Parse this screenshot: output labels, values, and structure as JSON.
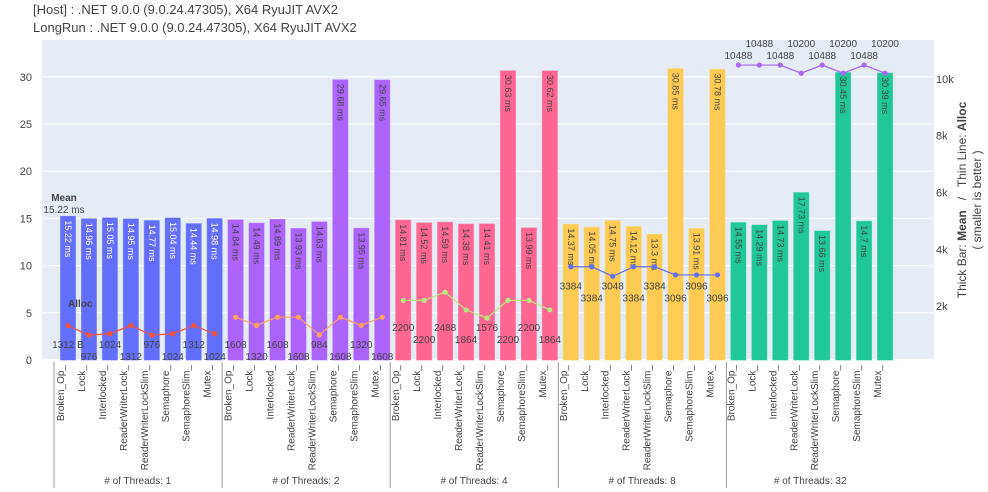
{
  "header": {
    "line1": "[Host]  : .NET 9.0.0 (9.0.24.47305), X64 RyuJIT AVX2",
    "line2": "LongRun : .NET 9.0.0 (9.0.24.47305), X64 RyuJIT AVX2"
  },
  "chart_data": {
    "type": "bar",
    "categories": [
      "Broken_Op_",
      "Lock_",
      "Interlocked_",
      "ReaderWriterLock_",
      "ReaderWriterLockSlim_",
      "Semaphore_",
      "SemaphoreSlim_",
      "Mutex_"
    ],
    "groups": [
      {
        "name": "# of Threads: 1",
        "color": "#636efa",
        "line_color": "#ef553b",
        "text_color": "#ffffff",
        "mean": [
          15.22,
          14.96,
          15.05,
          14.95,
          14.77,
          15.04,
          14.44,
          14.98
        ],
        "mean_labels": [
          "15.22 ms",
          "14.96 ms",
          "15.05 ms",
          "14.95 ms",
          "14.77 ms",
          "15.04 ms",
          "14.44 ms",
          "14.98 ms"
        ],
        "alloc": [
          1312,
          976,
          1024,
          1312,
          976,
          1024,
          1312,
          1024
        ],
        "alloc_labels": [
          "1312 B",
          "976",
          "1024",
          "1312",
          "976",
          "1024",
          "1312",
          "1024"
        ]
      },
      {
        "name": "# of Threads: 2",
        "color": "#ab63fa",
        "line_color": "#ffa15a",
        "text_color": "#444444",
        "mean": [
          14.84,
          14.49,
          14.89,
          13.93,
          14.63,
          29.68,
          13.95,
          29.65
        ],
        "mean_labels": [
          "14.84 ms",
          "14.49 ms",
          "14.89 ms",
          "13.93 ms",
          "14.63 ms",
          "29.68 ms",
          "13.95 ms",
          "29.65 ms"
        ],
        "alloc": [
          1608,
          1320,
          1608,
          1608,
          984,
          1608,
          1320,
          1608
        ],
        "alloc_labels": [
          "1608",
          "1320",
          "1608",
          "1608",
          "984",
          "1608",
          "1320",
          "1608"
        ]
      },
      {
        "name": "# of Threads: 4",
        "color": "#ff6692",
        "line_color": "#b6e880",
        "text_color": "#444444",
        "mean": [
          14.81,
          14.52,
          14.59,
          14.38,
          14.41,
          30.63,
          13.99,
          30.62
        ],
        "mean_labels": [
          "14.81 ms",
          "14.52 ms",
          "14.59 ms",
          "14.38 ms",
          "14.41 ms",
          "30.63 ms",
          "13.99 ms",
          "30.62 ms"
        ],
        "alloc": [
          2200,
          2200,
          2488,
          1864,
          1576,
          2200,
          2200,
          1864
        ],
        "alloc_labels": [
          "2200",
          "2200",
          "2488",
          "1864",
          "1576",
          "2200",
          "2200",
          "1864"
        ]
      },
      {
        "name": "# of Threads: 8",
        "color": "#fecb52",
        "line_color": "#636efa",
        "text_color": "#444444",
        "mean": [
          14.37,
          14.05,
          14.75,
          14.12,
          13.3,
          30.85,
          13.91,
          30.78
        ],
        "mean_labels": [
          "14.37 ms",
          "14.05 ms",
          "14.75 ms",
          "14.12 ms",
          "13.3 ms",
          "30.85 ms",
          "13.91 ms",
          "30.78 ms"
        ],
        "alloc": [
          3384,
          3384,
          3048,
          3384,
          3384,
          3096,
          3096,
          3096
        ],
        "alloc_labels": [
          "3384",
          "3384",
          "3048",
          "3384",
          "3384",
          "3096",
          "3096",
          "3096"
        ]
      },
      {
        "name": "# of Threads: 32",
        "color": "#1fc896",
        "line_color": "#ab63fa",
        "text_color": "#444444",
        "mean": [
          14.55,
          14.29,
          14.73,
          17.73,
          13.66,
          30.45,
          14.7,
          30.39
        ],
        "mean_labels": [
          "14.55 ms",
          "14.29 ms",
          "14.73 ms",
          "17.73 ms",
          "13.66 ms",
          "30.45 ms",
          "14.7 ms",
          "30.39 ms"
        ],
        "alloc": [
          10488,
          10488,
          10488,
          10200,
          10488,
          10200,
          10488,
          10200
        ],
        "alloc_labels": [
          "10488",
          "10488",
          "10488",
          "10200",
          "10488",
          "10200",
          "10488",
          "10200"
        ]
      }
    ],
    "y_left": {
      "range": [
        0,
        33.9
      ],
      "ticks": [
        0,
        5,
        10,
        15,
        20,
        25,
        30
      ],
      "tick_labels": [
        "0",
        "5",
        "10",
        "15",
        "20",
        "25",
        "30"
      ]
    },
    "y_right": {
      "range": [
        100,
        11370
      ],
      "ticks": [
        2000,
        4000,
        6000,
        8000,
        10000
      ],
      "tick_labels": [
        "2k",
        "4k",
        "6k",
        "8k",
        "10k"
      ],
      "title_prefix": "Thick Bar: ",
      "title_mean": "Mean",
      "title_mid": "   /   Thin Line: ",
      "title_alloc": "Alloc",
      "subtitle": "( smaller is better )"
    },
    "annotations": {
      "mean_title": "Mean",
      "mean_value": "15.22 ms",
      "alloc_title": "Alloc"
    },
    "grid": true
  }
}
